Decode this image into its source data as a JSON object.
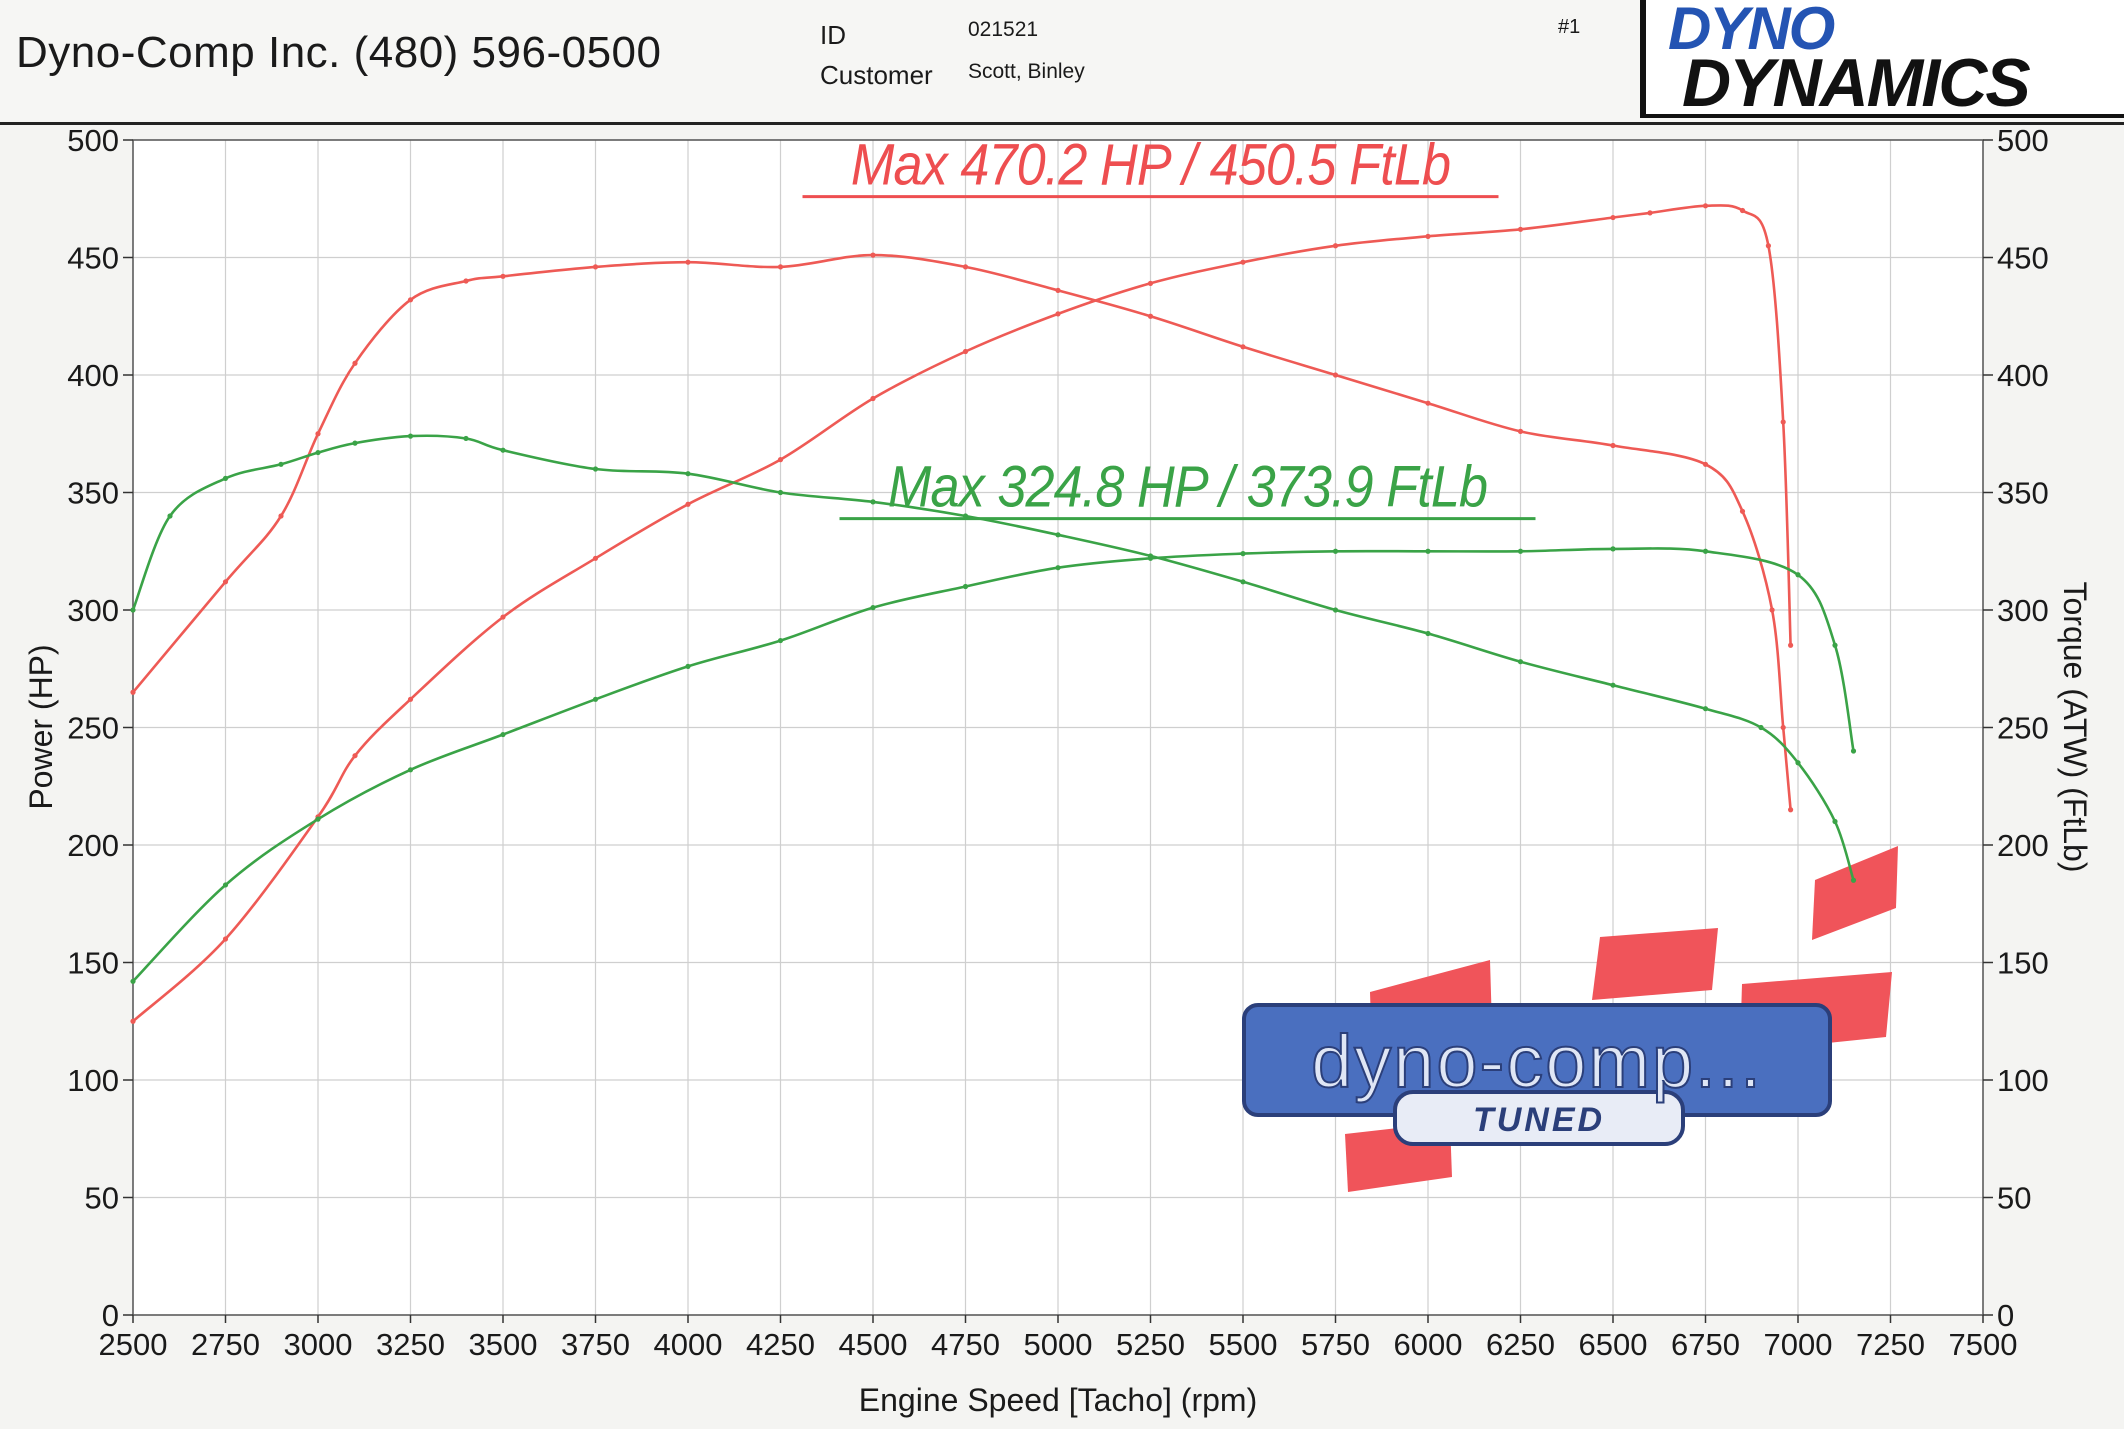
{
  "header": {
    "company": "Dyno-Comp Inc. (480) 596-0500",
    "id_label": "ID",
    "id_value": "021521",
    "customer_label": "Customer",
    "customer_value": "Scott, Binley",
    "run_number": "#1",
    "brand_top": "DYNO",
    "brand_bottom": "DYNAMICS"
  },
  "logo": {
    "text": "dyno-comp...",
    "subtext": "TUNED",
    "color": "#4a6fbf",
    "accent": "#f0545a"
  },
  "chart_data": {
    "type": "line",
    "title": "",
    "xlabel": "Engine Speed [Tacho] (rpm)",
    "ylabel": "Power (HP)",
    "y2label": "Torque (ATW) (FtLb)",
    "xlim": [
      2500,
      7500
    ],
    "ylim": [
      0,
      500
    ],
    "y2lim": [
      0,
      500
    ],
    "x_ticks": [
      2500,
      2750,
      3000,
      3250,
      3500,
      3750,
      4000,
      4250,
      4500,
      4750,
      5000,
      5250,
      5500,
      5750,
      6000,
      6250,
      6500,
      6750,
      7000,
      7250,
      7500
    ],
    "y_ticks": [
      0,
      50,
      100,
      150,
      200,
      250,
      300,
      350,
      400,
      450,
      500
    ],
    "grid": true,
    "annotations": [
      {
        "text": "Max 470.2 HP  / 450.5 FtLb",
        "color": "#ee4e50",
        "x": 5250,
        "y": 481
      },
      {
        "text": "Max 324.8 HP  / 373.9 FtLb",
        "color": "#3aa347",
        "x": 5350,
        "y": 344
      }
    ],
    "series": [
      {
        "color": "#ee5a55",
        "axis": "left",
        "x": [
          2500,
          2750,
          3000,
          3100,
          3250,
          3500,
          3750,
          4000,
          4250,
          4500,
          4750,
          5000,
          5250,
          5500,
          5750,
          6000,
          6250,
          6500,
          6600,
          6750,
          6850,
          6920,
          6960,
          6980
        ],
        "values": [
          125,
          160,
          212,
          238,
          262,
          297,
          322,
          345,
          364,
          390,
          410,
          426,
          439,
          448,
          455,
          459,
          462,
          467,
          469,
          472,
          470,
          455,
          380,
          285
        ]
      },
      {
        "color": "#ee5a55",
        "axis": "right",
        "x": [
          2500,
          2750,
          2900,
          3000,
          3100,
          3250,
          3400,
          3500,
          3750,
          4000,
          4250,
          4500,
          4750,
          5000,
          5250,
          5500,
          5750,
          6000,
          6250,
          6500,
          6750,
          6850,
          6930,
          6960,
          6980
        ],
        "values": [
          265,
          312,
          340,
          375,
          405,
          432,
          440,
          442,
          446,
          448,
          446,
          451,
          446,
          436,
          425,
          412,
          400,
          388,
          376,
          370,
          362,
          342,
          300,
          250,
          215
        ]
      },
      {
        "color": "#3aa347",
        "axis": "left",
        "x": [
          2500,
          2750,
          3000,
          3250,
          3500,
          3750,
          4000,
          4250,
          4500,
          4750,
          5000,
          5250,
          5500,
          5750,
          6000,
          6250,
          6500,
          6750,
          7000,
          7100,
          7150
        ],
        "values": [
          142,
          183,
          211,
          232,
          247,
          262,
          276,
          287,
          301,
          310,
          318,
          322,
          324,
          325,
          325,
          325,
          326,
          325,
          315,
          285,
          240
        ]
      },
      {
        "color": "#3aa347",
        "axis": "right",
        "x": [
          2500,
          2600,
          2750,
          2900,
          3000,
          3100,
          3250,
          3400,
          3500,
          3750,
          4000,
          4250,
          4500,
          4750,
          5000,
          5250,
          5500,
          5750,
          6000,
          6250,
          6500,
          6750,
          6900,
          7000,
          7100,
          7150
        ],
        "values": [
          300,
          340,
          356,
          362,
          367,
          371,
          374,
          373,
          368,
          360,
          358,
          350,
          346,
          340,
          332,
          323,
          312,
          300,
          290,
          278,
          268,
          258,
          250,
          235,
          210,
          185
        ]
      }
    ]
  }
}
